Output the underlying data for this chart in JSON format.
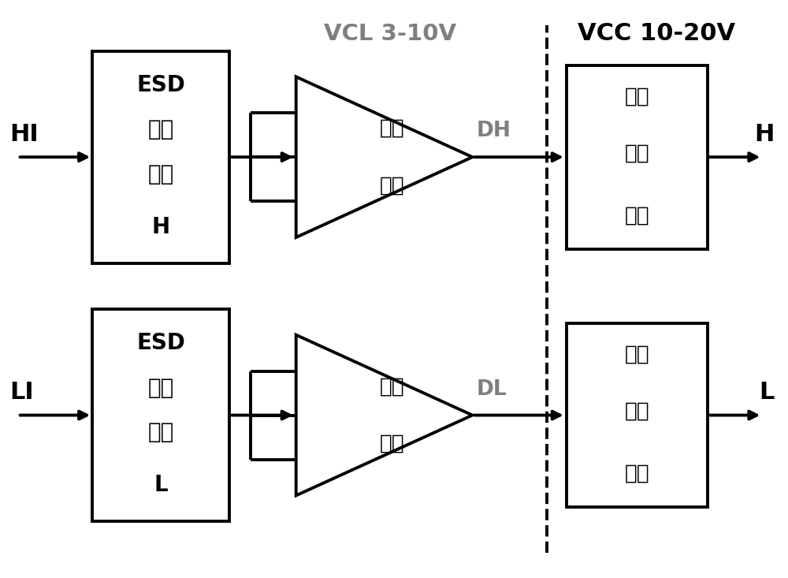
{
  "bg_color": "#ffffff",
  "line_color": "#000000",
  "gray_color": "#7f7f7f",
  "vcl_label": "VCL 3-10V",
  "vcc_label": "VCC 10-20V",
  "hi_label": "HI",
  "li_label": "LI",
  "h_label": "H",
  "l_label": "L",
  "dh_label": "DH",
  "dl_label": "DL",
  "esd_h_text": [
    "ESD",
    "保护",
    "电路",
    "H"
  ],
  "esd_l_text": [
    "ESD",
    "保护",
    "电路",
    "L"
  ],
  "comp_text": [
    "电平",
    "判别"
  ],
  "shift_text": [
    "中压",
    "电平",
    "移位"
  ],
  "lw": 2.8,
  "font_size_esd": 20,
  "font_size_comp": 19,
  "font_size_shift": 19,
  "font_size_io": 22,
  "font_size_dhl": 19,
  "font_size_vcl": 21,
  "font_size_vcc": 22
}
